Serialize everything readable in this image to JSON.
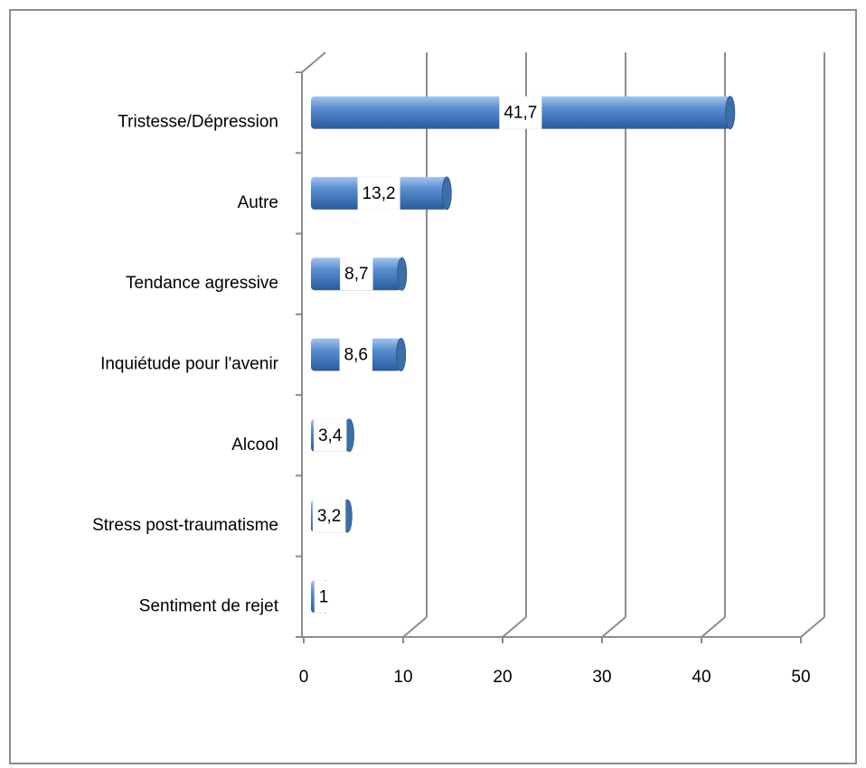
{
  "chart_data": {
    "type": "bar",
    "orientation": "horizontal",
    "categories": [
      "Tristesse/Dépression",
      "Autre",
      "Tendance agressive",
      "Inquiétude pour l'avenir",
      "Alcool",
      "Stress post-traumatisme",
      "Sentiment de rejet"
    ],
    "values": [
      41.7,
      13.2,
      8.7,
      8.6,
      3.4,
      3.2,
      1
    ],
    "value_labels": [
      "41,7",
      "13,2",
      "8,7",
      "8,6",
      "3,4",
      "3,2",
      "1"
    ],
    "color": "#4f81bd",
    "xlim": [
      0,
      50
    ],
    "xticks": [
      0,
      10,
      20,
      30,
      40,
      50
    ],
    "grid": true
  }
}
